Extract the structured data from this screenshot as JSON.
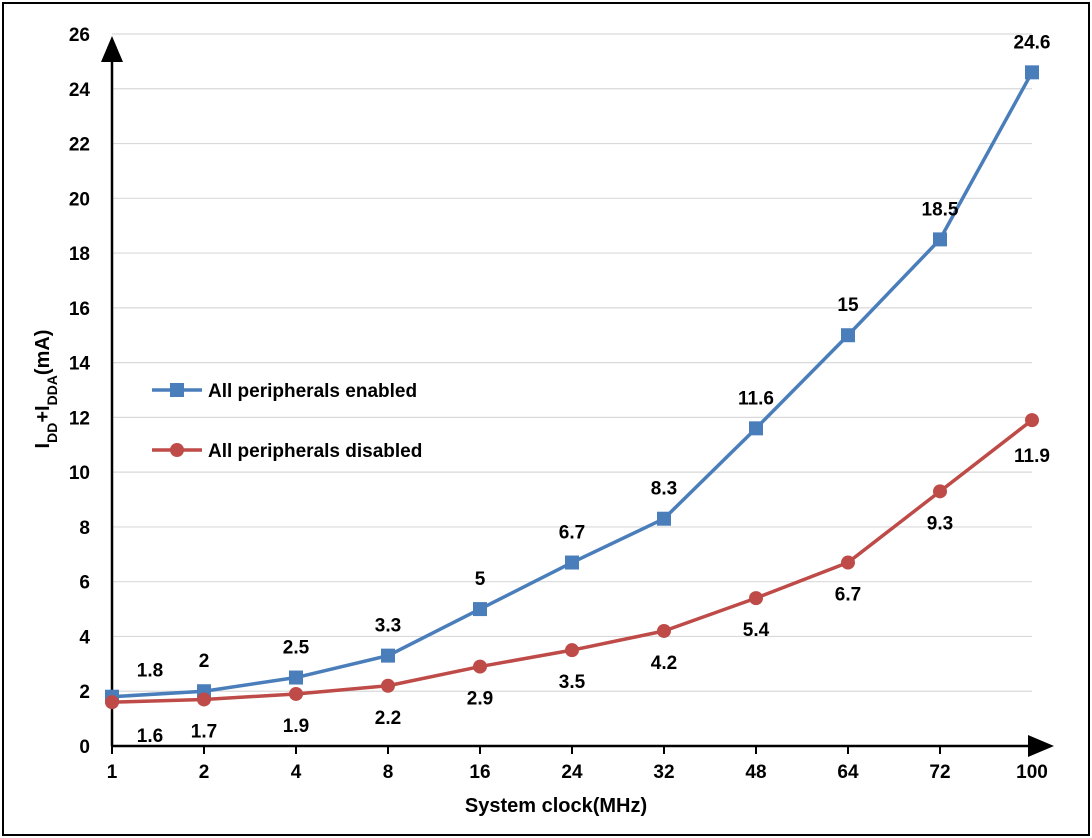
{
  "chart_data": {
    "type": "line",
    "title": "",
    "xlabel": "System clock(MHz)",
    "ylabel": {
      "main_1": "I",
      "sub_1": "DD",
      "plus": "+I",
      "sub_2": "DDA",
      "unit": "(mA)"
    },
    "categories": [
      "1",
      "2",
      "4",
      "8",
      "16",
      "24",
      "32",
      "48",
      "64",
      "72",
      "100"
    ],
    "y_ticks": [
      "0",
      "2",
      "4",
      "6",
      "8",
      "10",
      "12",
      "14",
      "16",
      "18",
      "20",
      "22",
      "24",
      "26"
    ],
    "ylim": [
      0,
      26
    ],
    "grid": true,
    "legend_position": "left",
    "series": [
      {
        "name": "All peripherals enabled",
        "marker": "square",
        "color": "#4a7ebb",
        "values": [
          1.8,
          2,
          2.5,
          3.3,
          5,
          6.7,
          8.3,
          11.6,
          15,
          18.5,
          24.6
        ],
        "labels": [
          "1.8",
          "2",
          "2.5",
          "3.3",
          "5",
          "6.7",
          "8.3",
          "11.6",
          "15",
          "18.5",
          "24.6"
        ],
        "label_placement": "above"
      },
      {
        "name": "All peripherals disabled",
        "marker": "circle",
        "color": "#be4b48",
        "values": [
          1.6,
          1.7,
          1.9,
          2.2,
          2.9,
          3.5,
          4.2,
          5.4,
          6.7,
          9.3,
          11.9
        ],
        "labels": [
          "1.6",
          "1.7",
          "1.9",
          "2.2",
          "2.9",
          "3.5",
          "4.2",
          "5.4",
          "6.7",
          "9.3",
          "11.9"
        ],
        "label_placement": "below"
      }
    ]
  }
}
